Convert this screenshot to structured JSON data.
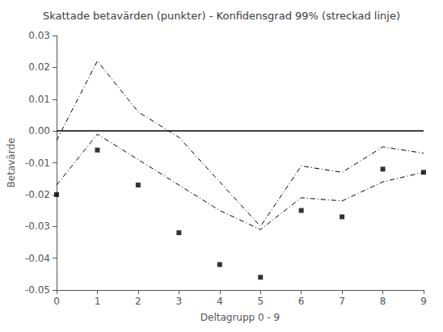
{
  "chart_data": {
    "type": "line",
    "title": "Skattade betavärden (punkter) - Konfidensgrad 99% (streckad linje)",
    "xlabel": "Deltagrupp 0 - 9",
    "ylabel": "Betavärde",
    "x": [
      0,
      1,
      2,
      3,
      4,
      5,
      6,
      7,
      8,
      9
    ],
    "series": [
      {
        "type": "line",
        "line_style": "dashdot",
        "color": "#000000",
        "values": [
          -0.003,
          0.022,
          0.006,
          -0.002,
          -0.016,
          -0.03,
          -0.011,
          -0.013,
          -0.005,
          -0.007
        ]
      },
      {
        "type": "line",
        "line_style": "dashdot",
        "color": "#000000",
        "values": [
          -0.017,
          -0.001,
          -0.009,
          -0.017,
          -0.025,
          -0.031,
          -0.021,
          -0.022,
          -0.016,
          -0.013
        ]
      },
      {
        "type": "scatter",
        "marker": "square",
        "color": "#000000",
        "values": [
          -0.02,
          -0.006,
          -0.017,
          -0.032,
          -0.042,
          -0.046,
          -0.025,
          -0.027,
          -0.012,
          -0.013
        ]
      }
    ],
    "hline": {
      "y": 0,
      "color": "#000000"
    },
    "xlim": [
      0,
      9
    ],
    "xticks": [
      0,
      1,
      2,
      3,
      4,
      5,
      6,
      7,
      8,
      9
    ],
    "ylim": [
      -0.05,
      0.03
    ],
    "yticks": [
      -0.05,
      -0.04,
      -0.03,
      -0.02,
      -0.01,
      {
        "value": 0,
        "label": "0.00"
      },
      0.01,
      0.02,
      0.03
    ],
    "grid": false
  }
}
